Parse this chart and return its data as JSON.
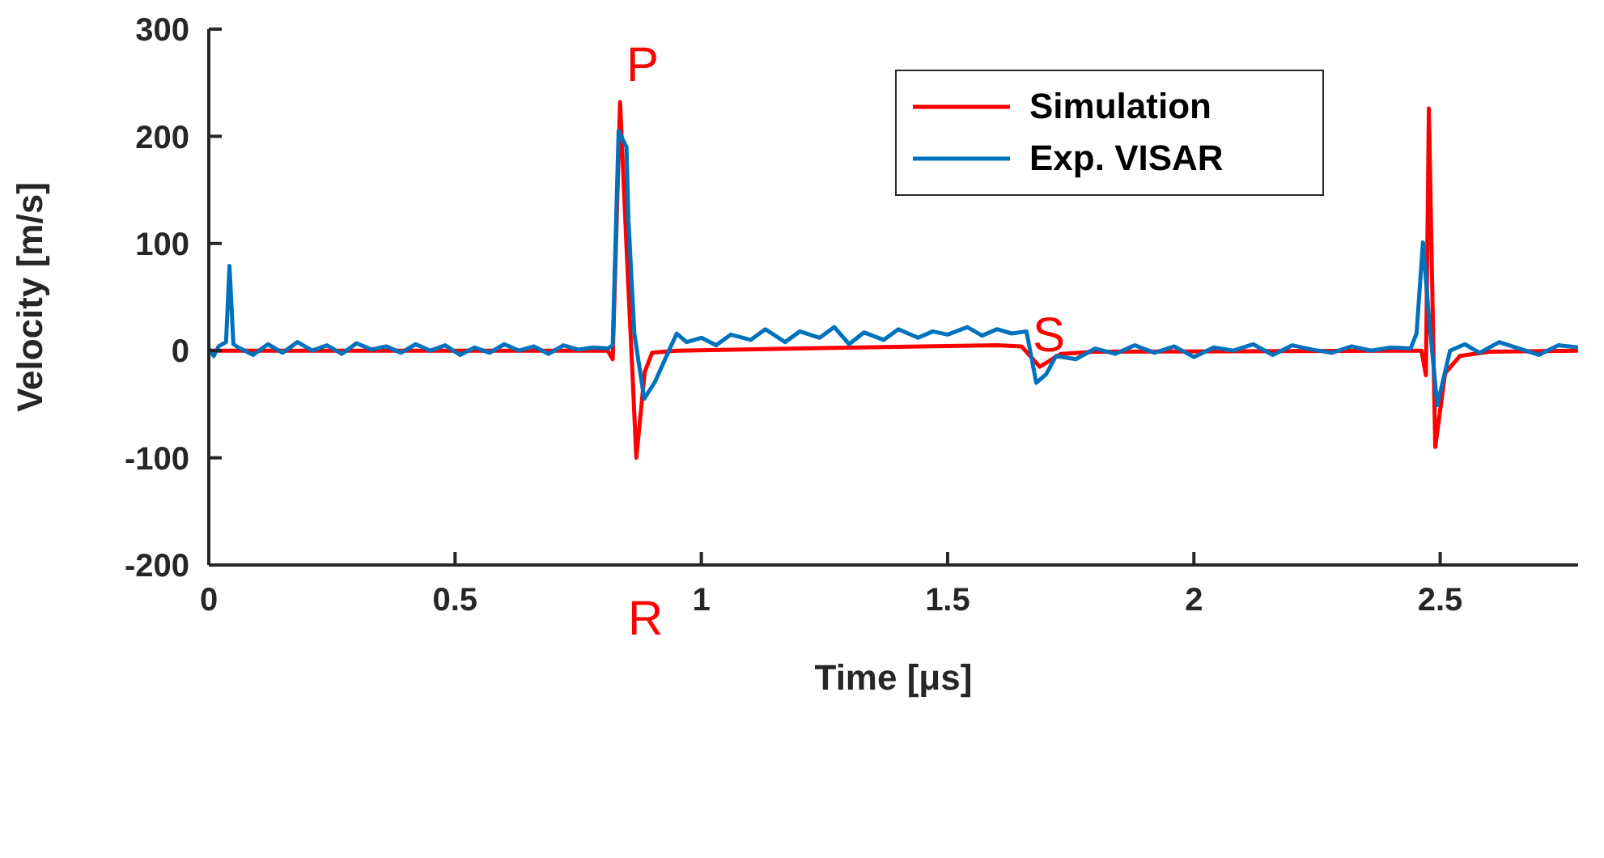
{
  "chart_data": {
    "type": "line",
    "xlabel": "Time [μs]",
    "ylabel": "Velocity [m/s]",
    "xlim": [
      0,
      2.78
    ],
    "ylim": [
      -200,
      300
    ],
    "xticks": [
      0,
      0.5,
      1,
      1.5,
      2,
      2.5
    ],
    "yticks": [
      -200,
      -100,
      0,
      100,
      200,
      300
    ],
    "grid": false,
    "legend": "top right",
    "marker": "none",
    "line_style": "solid",
    "annotations": [
      "P",
      "R",
      "S"
    ],
    "series": [
      {
        "name": "Simulation",
        "color": "#ff0000",
        "x": [
          0,
          0.4,
          0.81,
          0.82,
          0.835,
          0.85,
          0.86,
          0.868,
          0.885,
          0.9,
          0.95,
          1.2,
          1.6,
          1.65,
          1.687,
          1.73,
          1.8,
          2.4,
          2.462,
          2.471,
          2.477,
          2.49,
          2.51,
          2.54,
          2.6,
          2.78
        ],
        "values": [
          0,
          0,
          0,
          -8,
          232,
          77,
          -20,
          -100,
          -20,
          -2,
          0,
          2,
          5,
          4,
          -15,
          -3,
          -1,
          0,
          0,
          -23,
          226,
          -90,
          -21,
          -5,
          -1,
          0
        ]
      },
      {
        "name": "Exp. VISAR",
        "color": "#0072bd",
        "x": [
          0,
          0.01,
          0.02,
          0.035,
          0.042,
          0.05,
          0.06,
          0.09,
          0.12,
          0.15,
          0.18,
          0.21,
          0.24,
          0.27,
          0.3,
          0.33,
          0.36,
          0.39,
          0.42,
          0.45,
          0.48,
          0.51,
          0.54,
          0.57,
          0.6,
          0.63,
          0.66,
          0.69,
          0.72,
          0.75,
          0.78,
          0.81,
          0.82,
          0.832,
          0.848,
          0.852,
          0.864,
          0.884,
          0.906,
          0.938,
          0.95,
          0.97,
          1.0,
          1.03,
          1.06,
          1.1,
          1.13,
          1.17,
          1.2,
          1.24,
          1.27,
          1.3,
          1.33,
          1.37,
          1.4,
          1.44,
          1.47,
          1.5,
          1.54,
          1.57,
          1.6,
          1.63,
          1.66,
          1.68,
          1.7,
          1.72,
          1.76,
          1.8,
          1.84,
          1.88,
          1.92,
          1.96,
          2.0,
          2.04,
          2.08,
          2.12,
          2.16,
          2.2,
          2.24,
          2.28,
          2.32,
          2.36,
          2.4,
          2.44,
          2.452,
          2.465,
          2.477,
          2.494,
          2.52,
          2.55,
          2.58,
          2.62,
          2.66,
          2.7,
          2.74,
          2.78
        ],
        "values": [
          2,
          -5,
          4,
          8,
          79,
          6,
          3,
          -4,
          6,
          -2,
          8,
          0,
          5,
          -3,
          7,
          1,
          4,
          -2,
          6,
          0,
          5,
          -4,
          3,
          -2,
          6,
          0,
          4,
          -3,
          5,
          1,
          3,
          2,
          5,
          205,
          190,
          122,
          16,
          -45,
          -29,
          4,
          16,
          8,
          12,
          5,
          15,
          10,
          20,
          8,
          18,
          12,
          22,
          6,
          17,
          10,
          20,
          12,
          18,
          15,
          22,
          14,
          20,
          16,
          18,
          -30,
          -22,
          -5,
          -8,
          2,
          -3,
          5,
          -2,
          4,
          -6,
          3,
          0,
          6,
          -4,
          5,
          1,
          -2,
          4,
          0,
          3,
          2,
          16,
          101,
          32,
          -51,
          0,
          6,
          -2,
          8,
          2,
          -4,
          5,
          3
        ]
      }
    ]
  }
}
